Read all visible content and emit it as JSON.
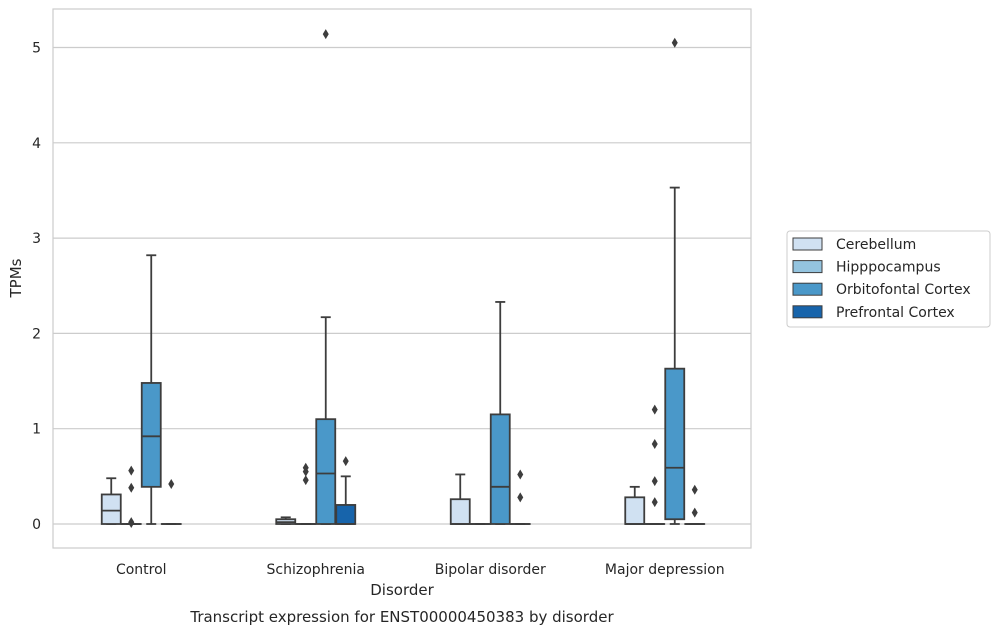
{
  "chart_data": {
    "type": "box",
    "caption": "Transcript expression for ENST00000450383 by disorder",
    "xlabel": "Disorder",
    "ylabel": "TPMs",
    "ylim": [
      -0.25,
      5.4
    ],
    "yticks": [
      0,
      1,
      2,
      3,
      4,
      5
    ],
    "grid": "horizontal",
    "legend_position": "right",
    "categories": [
      "Control",
      "Schizophrenia",
      "Bipolar disorder",
      "Major depression"
    ],
    "series": [
      {
        "name": "Cerebellum",
        "color": "#d0e1f2",
        "boxes": [
          {
            "q1": 0,
            "median": 0.14,
            "q3": 0.31,
            "whisker_low": 0,
            "whisker_high": 0.48,
            "outliers": []
          },
          {
            "q1": 0,
            "median": 0.02,
            "q3": 0.05,
            "whisker_low": 0,
            "whisker_high": 0.07,
            "outliers": []
          },
          {
            "q1": 0,
            "median": 0,
            "q3": 0.26,
            "whisker_low": 0,
            "whisker_high": 0.52,
            "outliers": []
          },
          {
            "q1": 0,
            "median": 0,
            "q3": 0.28,
            "whisker_low": 0,
            "whisker_high": 0.39,
            "outliers": []
          }
        ]
      },
      {
        "name": "Hipppocampus",
        "color": "#94c4df",
        "boxes": [
          {
            "q1": 0,
            "median": 0,
            "q3": 0,
            "whisker_low": 0,
            "whisker_high": 0,
            "outliers": [
              0.56,
              0.38,
              0.02,
              0.01
            ]
          },
          {
            "q1": 0,
            "median": 0,
            "q3": 0,
            "whisker_low": 0,
            "whisker_high": 0,
            "outliers": [
              0.59,
              0.55,
              0.46
            ]
          },
          {
            "q1": 0,
            "median": 0,
            "q3": 0,
            "whisker_low": 0,
            "whisker_high": 0,
            "outliers": []
          },
          {
            "q1": 0,
            "median": 0,
            "q3": 0,
            "whisker_low": 0,
            "whisker_high": 0,
            "outliers": [
              1.2,
              0.84,
              0.45,
              0.23
            ]
          }
        ]
      },
      {
        "name": "Orbitofontal Cortex",
        "color": "#4a98c9",
        "boxes": [
          {
            "q1": 0.39,
            "median": 0.92,
            "q3": 1.48,
            "whisker_low": 0,
            "whisker_high": 2.82,
            "outliers": []
          },
          {
            "q1": 0,
            "median": 0.53,
            "q3": 1.1,
            "whisker_low": 0,
            "whisker_high": 2.17,
            "outliers": [
              5.14
            ]
          },
          {
            "q1": 0,
            "median": 0.39,
            "q3": 1.15,
            "whisker_low": 0,
            "whisker_high": 2.33,
            "outliers": []
          },
          {
            "q1": 0.05,
            "median": 0.59,
            "q3": 1.63,
            "whisker_low": 0,
            "whisker_high": 3.53,
            "outliers": [
              5.05
            ]
          }
        ]
      },
      {
        "name": "Prefrontal Cortex",
        "color": "#1764ab",
        "boxes": [
          {
            "q1": 0,
            "median": 0,
            "q3": 0,
            "whisker_low": 0,
            "whisker_high": 0,
            "outliers": [
              0.42
            ]
          },
          {
            "q1": 0,
            "median": 0,
            "q3": 0.2,
            "whisker_low": 0,
            "whisker_high": 0.5,
            "outliers": [
              0.66
            ]
          },
          {
            "q1": 0,
            "median": 0,
            "q3": 0,
            "whisker_low": 0,
            "whisker_high": 0,
            "outliers": [
              0.52,
              0.28
            ]
          },
          {
            "q1": 0,
            "median": 0,
            "q3": 0,
            "whisker_low": 0,
            "whisker_high": 0,
            "outliers": [
              0.36,
              0.12
            ]
          }
        ]
      }
    ]
  }
}
